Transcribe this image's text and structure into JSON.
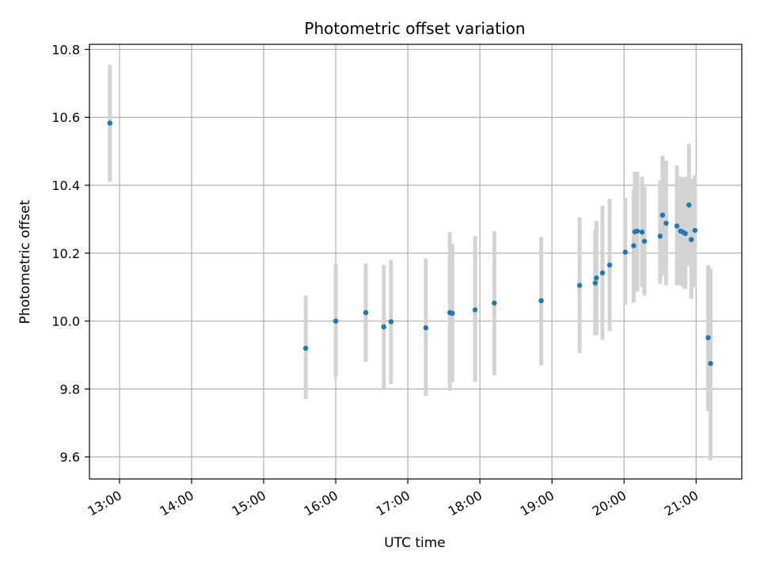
{
  "chart_data": {
    "type": "scatter",
    "title": "Photometric offset variation",
    "xlabel": "UTC time",
    "ylabel": "Photometric offset",
    "x_ticks": [
      "13:00",
      "14:00",
      "15:00",
      "16:00",
      "17:00",
      "18:00",
      "19:00",
      "20:00",
      "21:00"
    ],
    "y_ticks": [
      "9.6",
      "9.8",
      "10.0",
      "10.2",
      "10.4",
      "10.6",
      "10.8"
    ],
    "xlim": [
      "12:35",
      "21:38"
    ],
    "ylim": [
      9.535,
      10.815
    ],
    "grid": true,
    "colors": {
      "point": "#1f77b4",
      "error_bar": "#d3d3d3",
      "grid": "#b0b0b0"
    },
    "points": [
      {
        "x": "12:52",
        "y": 10.583,
        "err_low": 10.41,
        "err_high": 10.755
      },
      {
        "x": "15:35",
        "y": 9.92,
        "err_low": 9.77,
        "err_high": 10.075
      },
      {
        "x": "16:00",
        "y": 10.0,
        "err_low": 9.835,
        "err_high": 10.17
      },
      {
        "x": "16:25",
        "y": 10.025,
        "err_low": 9.88,
        "err_high": 10.17
      },
      {
        "x": "16:40",
        "y": 9.983,
        "err_low": 9.8,
        "err_high": 10.165
      },
      {
        "x": "16:46",
        "y": 9.998,
        "err_low": 9.815,
        "err_high": 10.18
      },
      {
        "x": "17:15",
        "y": 9.98,
        "err_low": 9.78,
        "err_high": 10.185
      },
      {
        "x": "17:35",
        "y": 10.025,
        "err_low": 9.795,
        "err_high": 10.262
      },
      {
        "x": "17:37",
        "y": 10.023,
        "err_low": 9.82,
        "err_high": 10.228
      },
      {
        "x": "17:56",
        "y": 10.033,
        "err_low": 9.82,
        "err_high": 10.25
      },
      {
        "x": "18:12",
        "y": 10.053,
        "err_low": 9.84,
        "err_high": 10.265
      },
      {
        "x": "18:51",
        "y": 10.06,
        "err_low": 9.87,
        "err_high": 10.248
      },
      {
        "x": "19:23",
        "y": 10.105,
        "err_low": 9.905,
        "err_high": 10.305
      },
      {
        "x": "19:36",
        "y": 10.112,
        "err_low": 9.958,
        "err_high": 10.268
      },
      {
        "x": "19:37",
        "y": 10.127,
        "err_low": 9.96,
        "err_high": 10.295
      },
      {
        "x": "19:42",
        "y": 10.142,
        "err_low": 9.945,
        "err_high": 10.34
      },
      {
        "x": "19:48",
        "y": 10.165,
        "err_low": 9.97,
        "err_high": 10.36
      },
      {
        "x": "20:01",
        "y": 10.203,
        "err_low": 10.048,
        "err_high": 10.363
      },
      {
        "x": "20:08",
        "y": 10.222,
        "err_low": 10.055,
        "err_high": 10.388
      },
      {
        "x": "20:09",
        "y": 10.263,
        "err_low": 10.085,
        "err_high": 10.44
      },
      {
        "x": "20:11",
        "y": 10.265,
        "err_low": 10.088,
        "err_high": 10.44
      },
      {
        "x": "20:15",
        "y": 10.262,
        "err_low": 10.1,
        "err_high": 10.425
      },
      {
        "x": "20:17",
        "y": 10.235,
        "err_low": 10.075,
        "err_high": 10.395
      },
      {
        "x": "20:30",
        "y": 10.25,
        "err_low": 10.11,
        "err_high": 10.413
      },
      {
        "x": "20:32",
        "y": 10.312,
        "err_low": 10.135,
        "err_high": 10.487
      },
      {
        "x": "20:35",
        "y": 10.288,
        "err_low": 10.105,
        "err_high": 10.472
      },
      {
        "x": "20:44",
        "y": 10.28,
        "err_low": 10.105,
        "err_high": 10.458
      },
      {
        "x": "20:47",
        "y": 10.265,
        "err_low": 10.105,
        "err_high": 10.425
      },
      {
        "x": "20:49",
        "y": 10.262,
        "err_low": 10.1,
        "err_high": 10.423
      },
      {
        "x": "20:51",
        "y": 10.258,
        "err_low": 10.095,
        "err_high": 10.425
      },
      {
        "x": "20:54",
        "y": 10.342,
        "err_low": 10.163,
        "err_high": 10.522
      },
      {
        "x": "20:56",
        "y": 10.24,
        "err_low": 10.065,
        "err_high": 10.42
      },
      {
        "x": "20:59",
        "y": 10.267,
        "err_low": 10.1,
        "err_high": 10.43
      },
      {
        "x": "21:10",
        "y": 9.951,
        "err_low": 9.735,
        "err_high": 10.165
      },
      {
        "x": "21:12",
        "y": 9.875,
        "err_low": 9.59,
        "err_high": 10.155
      }
    ]
  }
}
